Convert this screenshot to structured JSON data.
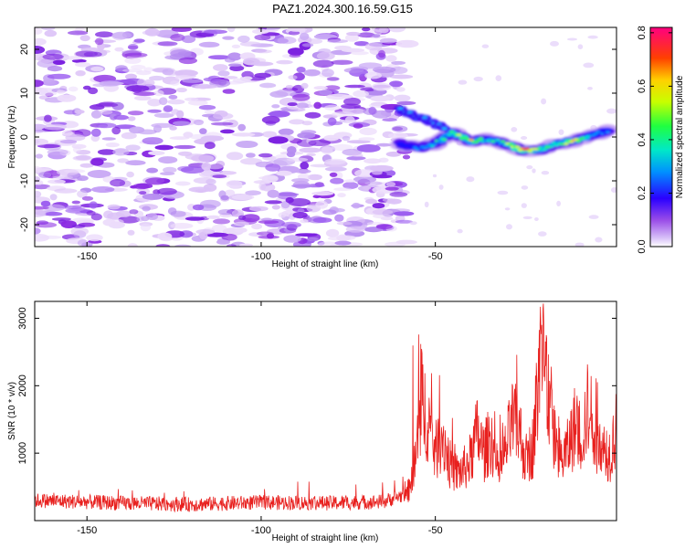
{
  "figure": {
    "title": "PAZ1.2024.300.16.59.G15"
  },
  "chart_data": [
    {
      "type": "heatmap",
      "xlabel": "Height of straight line (km)",
      "ylabel": "Frequency (Hz)",
      "xlim": [
        -165,
        2
      ],
      "ylim": [
        -25,
        25
      ],
      "x_ticks": [
        -150,
        -100,
        -50
      ],
      "y_ticks": [
        -20,
        -10,
        0,
        10,
        20
      ],
      "colorbar": {
        "label": "Normalized spectral amplitude",
        "range": [
          0.0,
          0.82
        ],
        "ticks": [
          0.0,
          0.2,
          0.4,
          0.6,
          0.8
        ],
        "colormap": [
          "#ffffff",
          "#c9a9f5",
          "#8a2be2",
          "#0000ff",
          "#00c8ff",
          "#00ff80",
          "#80ff00",
          "#ffff00",
          "#ffa000",
          "#ff0000",
          "#ff0080"
        ]
      },
      "noise_region": {
        "x_range": [
          -165,
          -58
        ],
        "amplitude": 0.05
      },
      "signal_ridge": {
        "x": [
          -60,
          -55,
          -50,
          -45,
          -40,
          -35,
          -30,
          -25,
          -20,
          -15,
          -10,
          -5,
          0
        ],
        "frequency": [
          -1.5,
          -2.5,
          -1.5,
          1,
          -1,
          -0.5,
          -1.5,
          -3,
          -3,
          -1.5,
          -1,
          0.5,
          1.5
        ],
        "amplitude": [
          0.3,
          0.35,
          0.45,
          0.55,
          0.65,
          0.45,
          0.55,
          0.8,
          0.6,
          0.5,
          0.7,
          0.4,
          0.35
        ]
      }
    },
    {
      "type": "line",
      "xlabel": "Height of straight line (km)",
      "ylabel": "SNR (10 * v/v)",
      "xlim": [
        -165,
        2
      ],
      "ylim": [
        0,
        3250
      ],
      "x_ticks": [
        -150,
        -100,
        -50
      ],
      "y_ticks": [
        1000,
        2000,
        3000
      ],
      "series": [
        {
          "color": "#e8201e",
          "envelope_x": [
            -165,
            -140,
            -120,
            -100,
            -80,
            -65,
            -58,
            -56,
            -54,
            -52,
            -50,
            -48,
            -46,
            -44,
            -42,
            -40,
            -38,
            -36,
            -34,
            -32,
            -30,
            -28,
            -26,
            -24,
            -22,
            -20,
            -18,
            -16,
            -14,
            -12,
            -10,
            -8,
            -6,
            -4,
            -2,
            0,
            2
          ],
          "envelope_y": [
            300,
            260,
            240,
            270,
            260,
            280,
            400,
            900,
            1800,
            1500,
            1000,
            1300,
            850,
            700,
            750,
            900,
            1300,
            1000,
            1250,
            700,
            1000,
            1450,
            1350,
            900,
            1100,
            2300,
            2100,
            1300,
            900,
            1050,
            1400,
            1250,
            1700,
            1300,
            1100,
            1000,
            1350
          ]
        }
      ]
    }
  ]
}
